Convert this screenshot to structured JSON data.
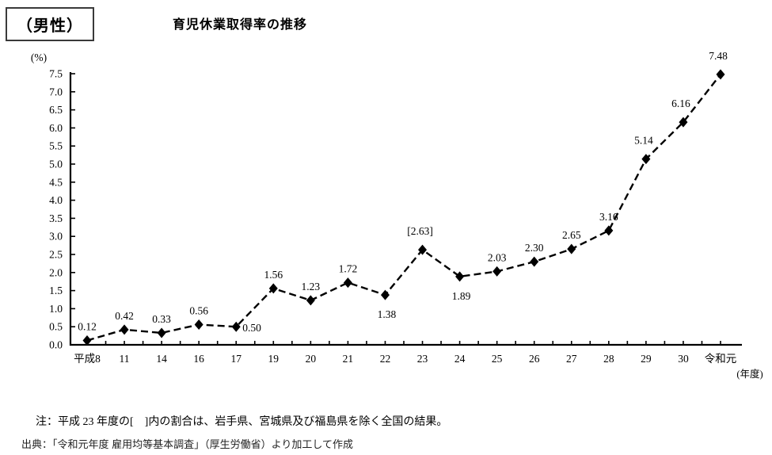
{
  "header": {
    "category_box": "（男性）",
    "title": "育児休業取得率の推移"
  },
  "chart_data": {
    "type": "line",
    "title": "育児休業取得率の推移",
    "series_name": "育児休業取得率（男性）",
    "unit_label": "(%)",
    "xaxis_unit_label": "(年度)",
    "categories": [
      "平成8",
      "11",
      "14",
      "16",
      "17",
      "19",
      "20",
      "21",
      "22",
      "23",
      "24",
      "25",
      "26",
      "27",
      "28",
      "29",
      "30",
      "令和元"
    ],
    "values": [
      0.12,
      0.42,
      0.33,
      0.56,
      0.5,
      1.56,
      1.23,
      1.72,
      1.38,
      2.63,
      1.89,
      2.03,
      2.3,
      2.65,
      3.16,
      5.14,
      6.16,
      7.48
    ],
    "point_labels": [
      "0.12",
      "0.42",
      "0.33",
      "0.56",
      "0.50",
      "1.56",
      "1.23",
      "1.72",
      "1.38",
      "[2.63]",
      "1.89",
      "2.03",
      "2.30",
      "2.65",
      "3.16",
      "5.14",
      "6.16",
      "7.48"
    ],
    "label_positions": [
      "above",
      "above",
      "above",
      "above",
      "right",
      "above",
      "above",
      "above",
      "below",
      "above-far",
      "below",
      "above",
      "above",
      "above",
      "above",
      "above-far",
      "above-far",
      "above-far"
    ],
    "ylim": [
      0,
      7.5
    ],
    "ytick_step": 0.5,
    "ytick_decimals": 1,
    "grid": false,
    "legend": "none",
    "line_style": "dashed",
    "marker": "diamond",
    "line_color": "#000000",
    "marker_color": "#000000",
    "text_color": "#000000"
  },
  "footer": {
    "note": "注：平成 23 年度の[　]内の割合は、岩手県、宮城県及び福島県を除く全国の結果。",
    "source": "出典：「令和元年度 雇用均等基本調査」（厚生労働省）より加工して作成"
  }
}
